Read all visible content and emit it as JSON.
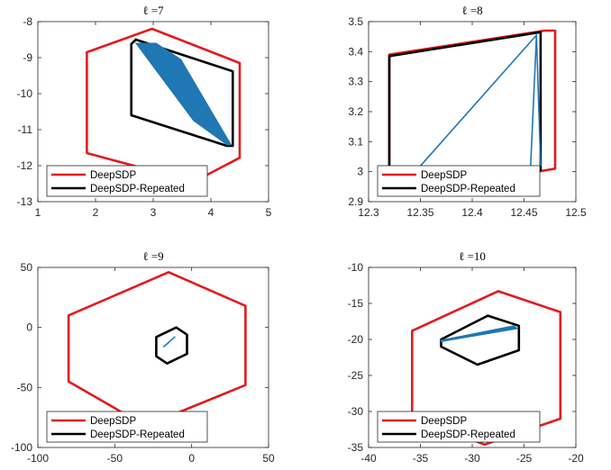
{
  "chart_data": [
    {
      "type": "line",
      "title": "ℓ =7",
      "xlim": [
        1,
        5
      ],
      "ylim": [
        -13,
        -8
      ],
      "xticks": [
        1,
        2,
        3,
        4,
        5
      ],
      "yticks": [
        -13,
        -12,
        -11,
        -10,
        -9,
        -8
      ],
      "xticklabels": [
        "1",
        "2",
        "3",
        "4",
        "5"
      ],
      "yticklabels": [
        "-13",
        "-12",
        "-11",
        "-10",
        "-9",
        "-8"
      ],
      "legend": {
        "position": "bottom-left",
        "entries": [
          "DeepSDP",
          "DeepSDP-Repeated"
        ]
      },
      "series": [
        {
          "name": "DeepSDP",
          "color": "#e41a1c",
          "x": [
            2.98,
            4.5,
            4.5,
            3.7,
            1.85,
            1.85,
            2.98
          ],
          "y": [
            -8.2,
            -9.15,
            -11.78,
            -12.45,
            -11.65,
            -8.85,
            -8.2
          ]
        },
        {
          "name": "DeepSDP-Repeated",
          "color": "#000000",
          "x": [
            2.7,
            4.38,
            4.38,
            4.28,
            2.62,
            2.62,
            2.7
          ],
          "y": [
            -8.5,
            -9.38,
            -11.45,
            -11.45,
            -10.6,
            -8.62,
            -8.5
          ]
        },
        {
          "color": "#1f77b4",
          "fill": true,
          "x": [
            2.7,
            3.05,
            3.48,
            4.35,
            4.28,
            3.7,
            2.7
          ],
          "y": [
            -8.6,
            -8.6,
            -9.05,
            -11.42,
            -11.42,
            -10.75,
            -8.6
          ]
        }
      ]
    },
    {
      "type": "line",
      "title": "ℓ =8",
      "xlim": [
        12.3,
        12.5
      ],
      "ylim": [
        2.9,
        3.5
      ],
      "xticks": [
        12.3,
        12.35,
        12.4,
        12.45,
        12.5
      ],
      "yticks": [
        2.9,
        3.0,
        3.1,
        3.2,
        3.3,
        3.4,
        3.5
      ],
      "xticklabels": [
        "12.3",
        "12.35",
        "12.4",
        "12.45",
        "12.5"
      ],
      "yticklabels": [
        "2.9",
        "3",
        "3.1",
        "3.2",
        "3.3",
        "3.4",
        "3.5"
      ],
      "legend": {
        "position": "bottom-left",
        "entries": [
          "DeepSDP",
          "DeepSDP-Repeated"
        ]
      },
      "series": [
        {
          "name": "DeepSDP",
          "color": "#e41a1c",
          "x": [
            12.32,
            12.47,
            12.48,
            12.48,
            12.335,
            12.32,
            12.32
          ],
          "y": [
            3.39,
            3.47,
            3.47,
            3.01,
            2.925,
            2.94,
            3.39
          ]
        },
        {
          "name": "DeepSDP-Repeated",
          "color": "#000000",
          "x": [
            12.32,
            12.466,
            12.466,
            12.34,
            12.32,
            12.32
          ],
          "y": [
            3.385,
            3.465,
            3.005,
            2.935,
            2.94,
            3.385
          ]
        },
        {
          "color": "#1f77b4",
          "x": [
            12.345,
            12.462,
            12.466,
            12.462,
            12.456
          ],
          "y": [
            3.0,
            3.455,
            3.02,
            3.455,
            2.99
          ]
        }
      ]
    },
    {
      "type": "line",
      "title": "ℓ =9",
      "xlim": [
        -100,
        50
      ],
      "ylim": [
        -100,
        50
      ],
      "xticks": [
        -100,
        -50,
        0,
        50
      ],
      "yticks": [
        -100,
        -50,
        0,
        50
      ],
      "xticklabels": [
        "-100",
        "-50",
        "0",
        "50"
      ],
      "yticklabels": [
        "-100",
        "-50",
        "0",
        "50"
      ],
      "legend": {
        "position": "bottom-left",
        "entries": [
          "DeepSDP",
          "DeepSDP-Repeated"
        ]
      },
      "series": [
        {
          "name": "DeepSDP",
          "color": "#e41a1c",
          "x": [
            -15,
            35,
            35,
            -30,
            -80,
            -80,
            -15
          ],
          "y": [
            46,
            18,
            -48,
            -82,
            -45,
            10,
            46
          ]
        },
        {
          "name": "DeepSDP-Repeated",
          "color": "#000000",
          "x": [
            -10,
            -3,
            -3,
            -16,
            -23,
            -23,
            -10
          ],
          "y": [
            0,
            -6,
            -22,
            -30,
            -24,
            -8,
            0
          ]
        },
        {
          "color": "#1f77b4",
          "x": [
            -18,
            -11
          ],
          "y": [
            -16,
            -8
          ]
        }
      ]
    },
    {
      "type": "line",
      "title": "ℓ =10",
      "xlim": [
        -40,
        -20
      ],
      "ylim": [
        -35,
        -10
      ],
      "xticks": [
        -40,
        -35,
        -30,
        -25,
        -20
      ],
      "yticks": [
        -35,
        -30,
        -25,
        -20,
        -15,
        -10
      ],
      "xticklabels": [
        "-40",
        "-35",
        "-30",
        "-25",
        "-20"
      ],
      "yticklabels": [
        "-35",
        "-30",
        "-25",
        "-20",
        "-15",
        "-10"
      ],
      "legend": {
        "position": "bottom-left",
        "entries": [
          "DeepSDP",
          "DeepSDP-Repeated"
        ]
      },
      "series": [
        {
          "name": "DeepSDP",
          "color": "#e41a1c",
          "x": [
            -27.5,
            -21.5,
            -21.5,
            -28.8,
            -35.8,
            -35.8,
            -27.5
          ],
          "y": [
            -13.3,
            -16.2,
            -31.0,
            -34.6,
            -30.8,
            -18.8,
            -13.3
          ]
        },
        {
          "name": "DeepSDP-Repeated",
          "color": "#000000",
          "x": [
            -28.5,
            -25.5,
            -25.5,
            -29.5,
            -33.0,
            -33.0,
            -28.5
          ],
          "y": [
            -16.7,
            -18.1,
            -21.5,
            -23.5,
            -21.0,
            -20.0,
            -16.7
          ]
        },
        {
          "color": "#1f77b4",
          "fill": true,
          "x": [
            -33.0,
            -26.0,
            -25.6,
            -33.0
          ],
          "y": [
            -20.1,
            -18.1,
            -18.5,
            -20.3
          ]
        }
      ]
    }
  ]
}
